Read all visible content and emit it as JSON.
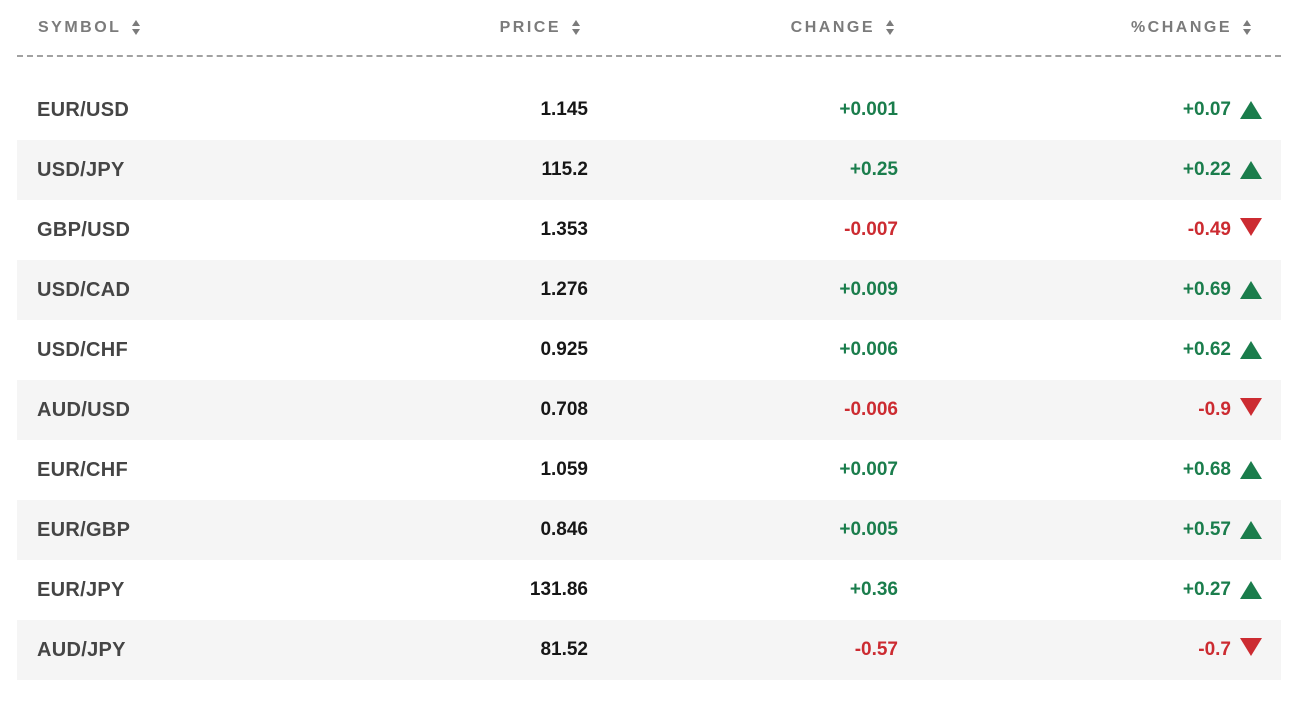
{
  "colors": {
    "positive": "#1a7d4c",
    "negative": "#cc2b31",
    "header_text": "#7b7b7b",
    "row_alt_bg": "#f5f5f5",
    "symbol_text": "#454545",
    "price_text": "#161616"
  },
  "table": {
    "columns": {
      "symbol": {
        "label": "SYMBOL"
      },
      "price": {
        "label": "PRICE"
      },
      "change": {
        "label": "CHANGE"
      },
      "pct": {
        "label": "%CHANGE"
      }
    },
    "rows": [
      {
        "symbol": "EUR/USD",
        "price": "1.145",
        "change": "+0.001",
        "pct_change": "+0.07",
        "direction": "up"
      },
      {
        "symbol": "USD/JPY",
        "price": "115.2",
        "change": "+0.25",
        "pct_change": "+0.22",
        "direction": "up"
      },
      {
        "symbol": "GBP/USD",
        "price": "1.353",
        "change": "-0.007",
        "pct_change": "-0.49",
        "direction": "down"
      },
      {
        "symbol": "USD/CAD",
        "price": "1.276",
        "change": "+0.009",
        "pct_change": "+0.69",
        "direction": "up"
      },
      {
        "symbol": "USD/CHF",
        "price": "0.925",
        "change": "+0.006",
        "pct_change": "+0.62",
        "direction": "up"
      },
      {
        "symbol": "AUD/USD",
        "price": "0.708",
        "change": "-0.006",
        "pct_change": "-0.9",
        "direction": "down"
      },
      {
        "symbol": "EUR/CHF",
        "price": "1.059",
        "change": "+0.007",
        "pct_change": "+0.68",
        "direction": "up"
      },
      {
        "symbol": "EUR/GBP",
        "price": "0.846",
        "change": "+0.005",
        "pct_change": "+0.57",
        "direction": "up"
      },
      {
        "symbol": "EUR/JPY",
        "price": "131.86",
        "change": "+0.36",
        "pct_change": "+0.27",
        "direction": "up"
      },
      {
        "symbol": "AUD/JPY",
        "price": "81.52",
        "change": "-0.57",
        "pct_change": "-0.7",
        "direction": "down"
      }
    ]
  }
}
